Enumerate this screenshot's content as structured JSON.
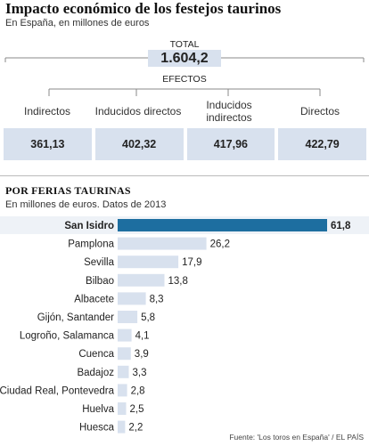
{
  "header": {
    "title": "Impacto económico de los festejos taurinos",
    "subtitle": "En España, en millones de euros"
  },
  "summary": {
    "total_label": "TOTAL",
    "total_value": "1.604,2",
    "efectos_label": "EFECTOS",
    "categories": [
      {
        "label": "Indirectos",
        "value": "361,13"
      },
      {
        "label": "Inducidos directos",
        "value": "402,32"
      },
      {
        "label": "Inducidos indirectos",
        "value": "417,96"
      },
      {
        "label": "Directos",
        "value": "422,79"
      }
    ]
  },
  "section": {
    "title": "POR FERIAS TAURINAS",
    "subtitle": "En millones de euros. Datos de 2013"
  },
  "chart_data": {
    "type": "bar",
    "orientation": "horizontal",
    "categories": [
      "San Isidro",
      "Pamplona",
      "Sevilla",
      "Bilbao",
      "Albacete",
      "Gijón, Santander",
      "Logroño, Salamanca",
      "Cuenca",
      "Badajoz",
      "Ciudad Real, Pontevedra",
      "Huelva",
      "Huesca"
    ],
    "values": [
      61.8,
      26.2,
      17.9,
      13.8,
      8.3,
      5.8,
      4.1,
      3.9,
      3.3,
      2.8,
      2.5,
      2.2
    ],
    "value_labels": [
      "61,8",
      "26,2",
      "17,9",
      "13,8",
      "8,3",
      "5,8",
      "4,1",
      "3,9",
      "3,3",
      "2,8",
      "2,5",
      "2,2"
    ],
    "highlight_index": 0,
    "colors": {
      "highlight": "#1d6ea0",
      "normal": "#d8e1ee"
    }
  },
  "footer": {
    "source": "Fuente: 'Los toros en España' / EL PAÍS"
  }
}
